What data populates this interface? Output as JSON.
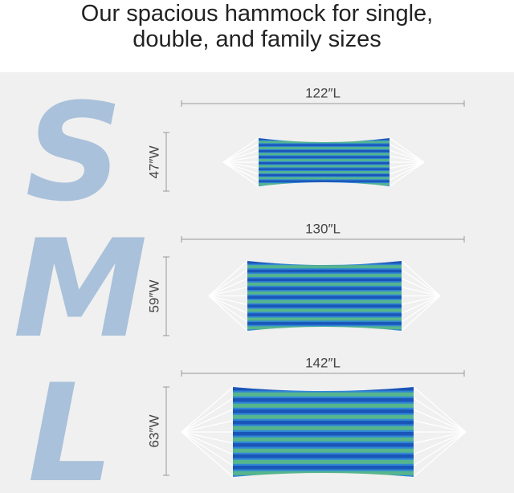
{
  "header": {
    "title_lines": [
      "Our spacious hammock for single,",
      "double, and family sizes"
    ]
  },
  "sizes": [
    {
      "letter": "S",
      "length": "122″L",
      "width": "47″W"
    },
    {
      "letter": "M",
      "length": "130″L",
      "width": "59″W"
    },
    {
      "letter": "L",
      "length": "142″L",
      "width": "63″W"
    }
  ]
}
